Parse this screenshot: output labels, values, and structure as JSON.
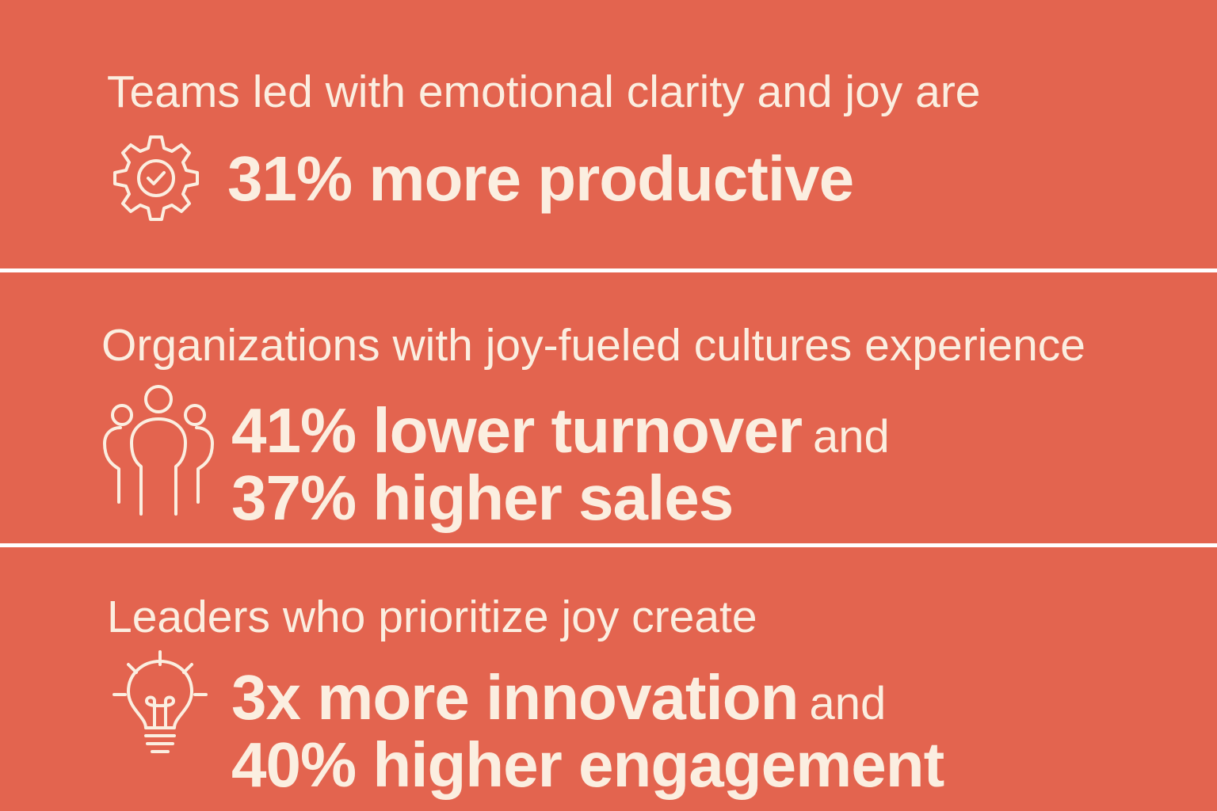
{
  "panels": [
    {
      "intro": "Teams led with emotional clarity and joy are",
      "lines": [
        {
          "strong": "31% more productive"
        }
      ]
    },
    {
      "intro": "Organizations with joy-fueled cultures experience",
      "lines": [
        {
          "strong": "41% lower turnover",
          "plain": "and"
        },
        {
          "strong": "37% higher sales"
        }
      ]
    },
    {
      "intro": "Leaders who prioritize joy create",
      "lines": [
        {
          "strong": "3x more innovation",
          "plain": "and"
        },
        {
          "strong": "40% higher engagement"
        }
      ]
    }
  ]
}
